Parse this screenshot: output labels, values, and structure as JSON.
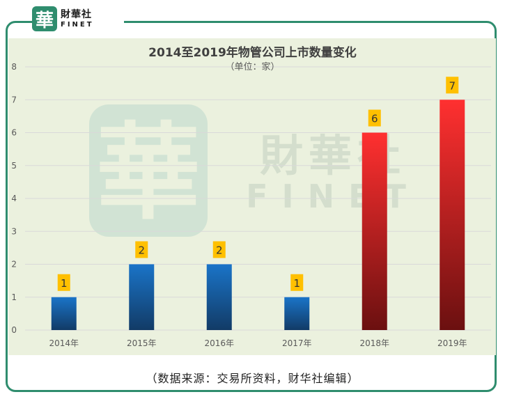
{
  "logo": {
    "glyph": "華",
    "name_cn": "財華社",
    "name_en": "FINET"
  },
  "watermark": {
    "glyph": "華",
    "name_cn": "財華社",
    "name_en": "FINET"
  },
  "footer_note": "（数据来源：交易所资料，财华社编辑）",
  "colors": {
    "frame": "#2f8d6e",
    "plot_background": "#ebf1de",
    "bar_blue_top": "#1a74c8",
    "bar_blue_bottom": "#123b66",
    "bar_red_top": "#ff3030",
    "bar_red_bottom": "#6b1010",
    "label_box": "#ffc000"
  },
  "chart_data": {
    "type": "bar",
    "title": "2014至2019年物管公司上市数量变化",
    "subtitle": "（单位：家）",
    "categories": [
      "2014年",
      "2015年",
      "2016年",
      "2017年",
      "2018年",
      "2019年"
    ],
    "values": [
      1,
      2,
      2,
      1,
      6,
      7
    ],
    "data_labels": [
      "1",
      "2",
      "2",
      "1",
      "6",
      "7"
    ],
    "ylim": [
      0,
      8
    ],
    "yticks": [
      "0",
      "1",
      "2",
      "3",
      "4",
      "5",
      "6",
      "7",
      "8"
    ],
    "grid": true,
    "legend": "none"
  }
}
